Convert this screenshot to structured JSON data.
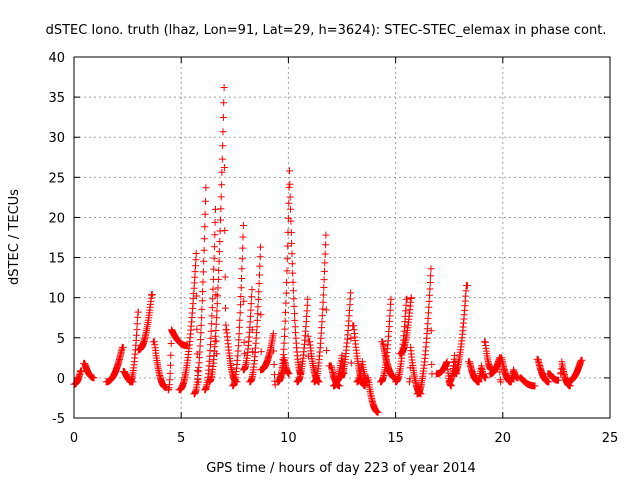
{
  "chart_data": {
    "type": "scatter",
    "title": "dSTEC Iono. truth (lhaz, Lon=91, Lat=29, h=3624): STEC-STEC_elemax in phase cont.",
    "xlabel": "GPS time / hours of day 223 of year 2014",
    "ylabel": "dSTEC  / TECUs",
    "xlim": [
      0,
      25
    ],
    "ylim": [
      -5,
      40
    ],
    "x_ticks": [
      "0",
      "5",
      "10",
      "15",
      "20",
      "25"
    ],
    "y_ticks": [
      "-5",
      "0",
      "5",
      "10",
      "15",
      "20",
      "25",
      "30",
      "35",
      "40"
    ],
    "grid": true,
    "legend": "none",
    "marker": "plus",
    "color": "#ff0000",
    "arcs": [
      {
        "t0": 0.0,
        "t1": 0.35,
        "y0": -0.8,
        "peak": 0.8,
        "y1": 0.9,
        "tp": 0.3
      },
      {
        "t0": 0.45,
        "t1": 0.95,
        "y0": 1.8,
        "peak": 1.8,
        "y1": 0.0,
        "tp": 0.5
      },
      {
        "t0": 1.5,
        "t1": 2.3,
        "y0": -0.5,
        "peak": 3.8,
        "y1": 3.8,
        "tp": 2.25
      },
      {
        "t0": 2.3,
        "t1": 2.75,
        "y0": 0.8,
        "peak": 0.8,
        "y1": -0.5,
        "tp": 2.35
      },
      {
        "t0": 2.6,
        "t1": 3.0,
        "y0": -0.5,
        "peak": 8.2,
        "y1": 8.2,
        "tp": 2.98
      },
      {
        "t0": 3.0,
        "t1": 3.65,
        "y0": 3.5,
        "peak": 10.4,
        "y1": 10.4,
        "tp": 3.62
      },
      {
        "t0": 3.7,
        "t1": 4.3,
        "y0": 4.5,
        "peak": 4.5,
        "y1": -1.2,
        "tp": 3.75
      },
      {
        "t0": 4.4,
        "t1": 5.3,
        "y0": -1.5,
        "peak": 6.0,
        "y1": 4.0,
        "tp": 4.55
      },
      {
        "t0": 4.9,
        "t1": 5.8,
        "y0": -1.5,
        "peak": 15.5,
        "y1": -0.5,
        "tp": 5.7
      },
      {
        "t0": 5.6,
        "t1": 6.15,
        "y0": -2.0,
        "peak": 23.7,
        "y1": 3.0,
        "tp": 6.15
      },
      {
        "t0": 6.1,
        "t1": 6.65,
        "y0": -1.5,
        "peak": 21.0,
        "y1": 3.0,
        "tp": 6.6
      },
      {
        "t0": 6.3,
        "t1": 7.1,
        "y0": -0.5,
        "peak": 36.2,
        "y1": 6.0,
        "tp": 7.0
      },
      {
        "t0": 7.1,
        "t1": 7.6,
        "y0": 6.0,
        "peak": 6.0,
        "y1": -0.5,
        "tp": 7.12
      },
      {
        "t0": 7.4,
        "t1": 7.95,
        "y0": -1.0,
        "peak": 19.0,
        "y1": 3.0,
        "tp": 7.9
      },
      {
        "t0": 7.9,
        "t1": 8.35,
        "y0": 1.0,
        "peak": 11.0,
        "y1": 2.5,
        "tp": 8.3
      },
      {
        "t0": 8.2,
        "t1": 8.75,
        "y0": -0.5,
        "peak": 16.3,
        "y1": 2.0,
        "tp": 8.7
      },
      {
        "t0": 8.7,
        "t1": 9.4,
        "y0": 1.0,
        "peak": 5.5,
        "y1": -1.0,
        "tp": 9.3
      },
      {
        "t0": 9.5,
        "t1": 10.05,
        "y0": -0.5,
        "peak": 2.5,
        "y1": 0.5,
        "tp": 9.8
      },
      {
        "t0": 9.6,
        "t1": 10.6,
        "y0": 0.0,
        "peak": 25.8,
        "y1": 0.5,
        "tp": 10.05
      },
      {
        "t0": 10.4,
        "t1": 10.95,
        "y0": -0.5,
        "peak": 9.8,
        "y1": 2.0,
        "tp": 10.9
      },
      {
        "t0": 10.95,
        "t1": 11.45,
        "y0": 4.5,
        "peak": 4.5,
        "y1": -0.5,
        "tp": 11.0
      },
      {
        "t0": 11.2,
        "t1": 11.8,
        "y0": -0.5,
        "peak": 17.8,
        "y1": 2.0,
        "tp": 11.75
      },
      {
        "t0": 11.9,
        "t1": 12.4,
        "y0": 1.5,
        "peak": 1.5,
        "y1": -1.0,
        "tp": 12.0
      },
      {
        "t0": 12.1,
        "t1": 12.6,
        "y0": -1.0,
        "peak": 2.8,
        "y1": 0.5,
        "tp": 12.5
      },
      {
        "t0": 12.4,
        "t1": 12.95,
        "y0": 0.0,
        "peak": 10.6,
        "y1": 1.0,
        "tp": 12.9
      },
      {
        "t0": 13.0,
        "t1": 13.6,
        "y0": 6.5,
        "peak": 6.5,
        "y1": -1.0,
        "tp": 13.05
      },
      {
        "t0": 13.2,
        "t1": 13.7,
        "y0": -0.5,
        "peak": 2.0,
        "y1": -0.5,
        "tp": 13.45
      },
      {
        "t0": 13.7,
        "t1": 14.2,
        "y0": 0.0,
        "peak": 0.0,
        "y1": -4.3,
        "tp": 13.72
      },
      {
        "t0": 14.3,
        "t1": 14.8,
        "y0": -0.5,
        "peak": 9.8,
        "y1": 9.8,
        "tp": 14.78
      },
      {
        "t0": 14.35,
        "t1": 15.0,
        "y0": 4.5,
        "peak": 4.5,
        "y1": 0.0,
        "tp": 14.4
      },
      {
        "t0": 15.0,
        "t1": 15.55,
        "y0": -0.5,
        "peak": 9.8,
        "y1": 9.8,
        "tp": 15.5
      },
      {
        "t0": 15.2,
        "t1": 15.75,
        "y0": 3.0,
        "peak": 10.0,
        "y1": 10.0,
        "tp": 15.72
      },
      {
        "t0": 15.65,
        "t1": 16.2,
        "y0": -0.5,
        "peak": 3.8,
        "y1": -2.0,
        "tp": 15.7
      },
      {
        "t0": 16.0,
        "t1": 16.7,
        "y0": -2.0,
        "peak": 13.6,
        "y1": 0.5,
        "tp": 16.65
      },
      {
        "t0": 16.9,
        "t1": 17.6,
        "y0": 0.5,
        "peak": 2.0,
        "y1": -1.0,
        "tp": 17.4
      },
      {
        "t0": 17.5,
        "t1": 17.85,
        "y0": -0.5,
        "peak": 2.8,
        "y1": 0.5,
        "tp": 17.75
      },
      {
        "t0": 17.7,
        "t1": 18.35,
        "y0": 0.5,
        "peak": 11.5,
        "y1": 11.5,
        "tp": 18.3
      },
      {
        "t0": 18.4,
        "t1": 18.9,
        "y0": 2.0,
        "peak": 2.0,
        "y1": -0.5,
        "tp": 18.45
      },
      {
        "t0": 18.8,
        "t1": 19.2,
        "y0": -0.5,
        "peak": 1.5,
        "y1": 0.0,
        "tp": 19.0
      },
      {
        "t0": 19.15,
        "t1": 19.5,
        "y0": 4.5,
        "peak": 4.5,
        "y1": 1.0,
        "tp": 19.18
      },
      {
        "t0": 19.4,
        "t1": 19.9,
        "y0": 0.5,
        "peak": 2.5,
        "y1": -0.5,
        "tp": 19.85
      },
      {
        "t0": 19.9,
        "t1": 20.4,
        "y0": 2.5,
        "peak": 2.5,
        "y1": -0.5,
        "tp": 19.95
      },
      {
        "t0": 20.3,
        "t1": 20.7,
        "y0": -0.5,
        "peak": 1.0,
        "y1": 0.0,
        "tp": 20.5
      },
      {
        "t0": 20.8,
        "t1": 21.5,
        "y0": 0.0,
        "peak": 0.0,
        "y1": -1.0,
        "tp": 20.85
      },
      {
        "t0": 21.6,
        "t1": 22.15,
        "y0": 2.3,
        "peak": 2.3,
        "y1": -0.5,
        "tp": 21.65
      },
      {
        "t0": 22.1,
        "t1": 22.6,
        "y0": 0.5,
        "peak": 0.5,
        "y1": -0.3,
        "tp": 22.2
      },
      {
        "t0": 22.7,
        "t1": 23.15,
        "y0": 0.5,
        "peak": 2.0,
        "y1": -1.0,
        "tp": 22.75
      },
      {
        "t0": 23.0,
        "t1": 23.7,
        "y0": -0.5,
        "peak": 2.2,
        "y1": 2.2,
        "tp": 23.65
      }
    ]
  }
}
